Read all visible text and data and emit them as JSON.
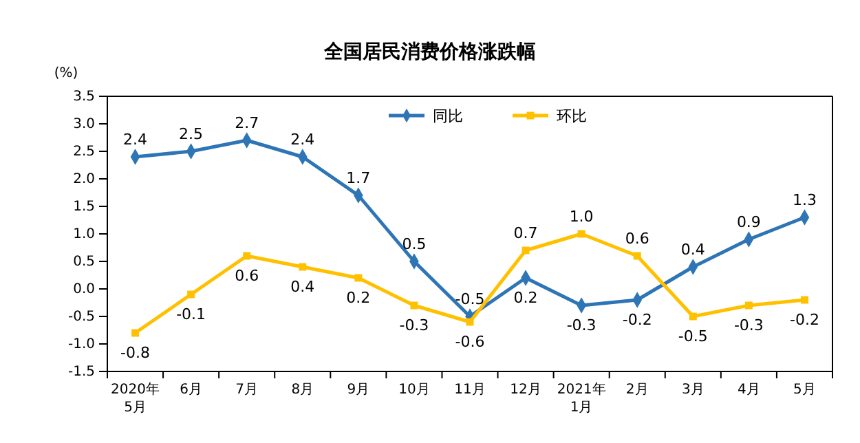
{
  "chart_data": {
    "type": "line",
    "title": "全国居民消费价格涨跌幅",
    "ylabel": "(%)",
    "categories": [
      "2020年\n5月",
      "6月",
      "7月",
      "8月",
      "9月",
      "10月",
      "11月",
      "12月",
      "2021年\n1月",
      "2月",
      "3月",
      "4月",
      "5月"
    ],
    "series": [
      {
        "name": "同比",
        "color": "#2e75b6",
        "marker": "diamond",
        "values": [
          2.4,
          2.5,
          2.7,
          2.4,
          1.7,
          0.5,
          -0.5,
          0.2,
          -0.3,
          -0.2,
          0.4,
          0.9,
          1.3
        ]
      },
      {
        "name": "环比",
        "color": "#ffc000",
        "marker": "square",
        "values": [
          -0.8,
          -0.1,
          0.6,
          0.4,
          0.2,
          -0.3,
          -0.6,
          0.7,
          1.0,
          0.6,
          -0.5,
          -0.3,
          -0.2
        ],
        "value_labels": [
          "-0.8",
          "-0.1",
          "0.6",
          "0.4",
          "0.2",
          "-0.3",
          "-0.6",
          "0.7",
          "1.0",
          "0.6",
          "-0.5",
          "-0.3",
          "-0.2"
        ]
      }
    ],
    "ylim": [
      -1.5,
      3.5
    ],
    "yticks": [
      -1.5,
      {
        "value": -1,
        "label": "-1.0"
      },
      -0.5,
      {
        "value": 0,
        "label": "0.0"
      },
      0.5,
      {
        "value": 1,
        "label": "1.0"
      },
      1.5,
      {
        "value": 2,
        "label": "2.0"
      },
      2.5,
      {
        "value": 3,
        "label": "3.0"
      },
      3.5
    ],
    "data_labels": true,
    "legend": "top",
    "grid": false
  }
}
